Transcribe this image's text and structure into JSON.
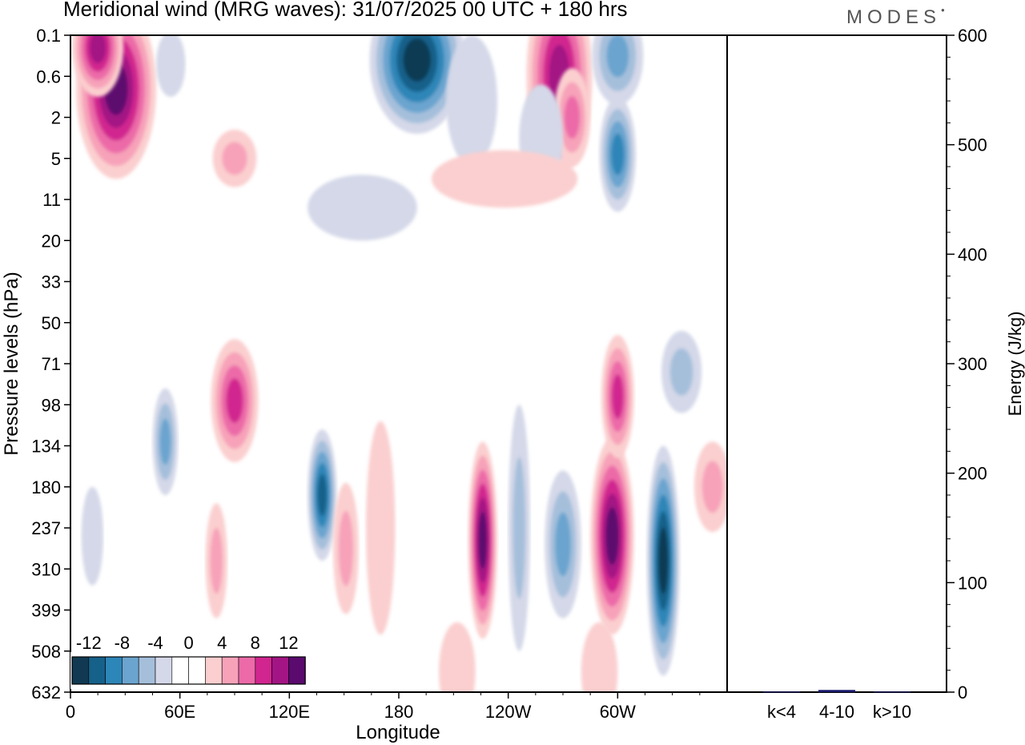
{
  "title": "Meridional wind (MRG waves):  31/07/2025  00 UTC  + 180 hrs",
  "logo": "MODES",
  "colors": {
    "neg": [
      "#113a52",
      "#15618a",
      "#2d86b8",
      "#6ba4cf",
      "#a5bfdb",
      "#d4d8e8"
    ],
    "pos": [
      "#fbcfcf",
      "#f7a2b9",
      "#ec6aa8",
      "#d1258f",
      "#a31584",
      "#5b0a6e"
    ],
    "frame": "#000000",
    "energy_bar": "#1a1a6e"
  },
  "chart_data": [
    {
      "type": "heatmap",
      "title": "Meridional wind (MRG waves):  31/07/2025  00 UTC  + 180 hrs",
      "xlabel": "Longitude",
      "ylabel": "Pressure levels (hPa)",
      "x_ticks": [
        "0",
        "60E",
        "120E",
        "180",
        "120W",
        "60W"
      ],
      "y_ticks": [
        "0.1",
        "0.6",
        "2",
        "5",
        "11",
        "20",
        "33",
        "50",
        "71",
        "98",
        "134",
        "180",
        "237",
        "310",
        "399",
        "508",
        "632"
      ],
      "colorbar": {
        "labels": [
          "-12",
          "-8",
          "-4",
          "0",
          "4",
          "8",
          "12"
        ],
        "levels": [
          -14,
          -12,
          -10,
          -8,
          -6,
          -4,
          -2,
          2,
          4,
          6,
          8,
          10,
          12,
          14
        ]
      },
      "features": [
        {
          "lon": 25,
          "lev": 1.3,
          "value": 14,
          "lon_w": 22,
          "lev_w": 2.2
        },
        {
          "lon": 15,
          "lev": 0.3,
          "value": 10,
          "lon_w": 14,
          "lev_w": 1.2
        },
        {
          "lon": 190,
          "lev": 0.6,
          "value": -13,
          "lon_w": 26,
          "lev_w": 1.8
        },
        {
          "lon": 268,
          "lev": 1.0,
          "value": 11,
          "lon_w": 18,
          "lev_w": 2.4
        },
        {
          "lon": 300,
          "lev": 0.5,
          "value": -6,
          "lon_w": 14,
          "lev_w": 1.2
        },
        {
          "lon": 300,
          "lev": 2.9,
          "value": -8,
          "lon_w": 10,
          "lev_w": 1.4
        },
        {
          "lon": 275,
          "lev": 2.0,
          "value": 6,
          "lon_w": 10,
          "lev_w": 1.2
        },
        {
          "lon": 258,
          "lev": 2.5,
          "value": -3,
          "lon_w": 12,
          "lev_w": 1.3
        },
        {
          "lon": 220,
          "lev": 1.6,
          "value": -3,
          "lon_w": 14,
          "lev_w": 1.6
        },
        {
          "lon": 55,
          "lev": 0.7,
          "value": -3,
          "lon_w": 8,
          "lev_w": 0.8
        },
        {
          "lon": 90,
          "lev": 3.0,
          "value": 4,
          "lon_w": 12,
          "lev_w": 0.7
        },
        {
          "lon": 160,
          "lev": 4.2,
          "value": -3,
          "lon_w": 30,
          "lev_w": 0.8
        },
        {
          "lon": 238,
          "lev": 3.5,
          "value": 3,
          "lon_w": 40,
          "lev_w": 0.7
        },
        {
          "lon": 90,
          "lev": 8.9,
          "value": 8,
          "lon_w": 13,
          "lev_w": 1.5
        },
        {
          "lon": 52,
          "lev": 9.9,
          "value": -7,
          "lon_w": 7,
          "lev_w": 1.3
        },
        {
          "lon": 138,
          "lev": 11.2,
          "value": -11,
          "lon_w": 8,
          "lev_w": 1.6
        },
        {
          "lon": 151,
          "lev": 12.5,
          "value": 5,
          "lon_w": 7,
          "lev_w": 1.6
        },
        {
          "lon": 170,
          "lev": 12.0,
          "value": 3,
          "lon_w": 8,
          "lev_w": 2.6
        },
        {
          "lon": 226,
          "lev": 12.3,
          "value": 12,
          "lon_w": 8,
          "lev_w": 2.4
        },
        {
          "lon": 246,
          "lev": 12.0,
          "value": -4,
          "lon_w": 6,
          "lev_w": 3.0
        },
        {
          "lon": 270,
          "lev": 12.4,
          "value": -7,
          "lon_w": 10,
          "lev_w": 1.8
        },
        {
          "lon": 297,
          "lev": 12.2,
          "value": 12,
          "lon_w": 12,
          "lev_w": 2.4
        },
        {
          "lon": 325,
          "lev": 12.8,
          "value": -13,
          "lon_w": 9,
          "lev_w": 2.8
        },
        {
          "lon": 300,
          "lev": 8.8,
          "value": 8,
          "lon_w": 9,
          "lev_w": 1.5
        },
        {
          "lon": 335,
          "lev": 8.2,
          "value": -5,
          "lon_w": 11,
          "lev_w": 1.0
        },
        {
          "lon": 352,
          "lev": 11.0,
          "value": 5,
          "lon_w": 10,
          "lev_w": 1.1
        },
        {
          "lon": 80,
          "lev": 12.8,
          "value": 5,
          "lon_w": 6,
          "lev_w": 1.4
        },
        {
          "lon": 12,
          "lev": 12.2,
          "value": -3,
          "lon_w": 6,
          "lev_w": 1.2
        },
        {
          "lon": 212,
          "lev": 15.5,
          "value": 3,
          "lon_w": 10,
          "lev_w": 1.2
        },
        {
          "lon": 290,
          "lev": 15.5,
          "value": 3,
          "lon_w": 10,
          "lev_w": 1.2
        }
      ]
    },
    {
      "type": "bar",
      "categories": [
        "k<4",
        "4-10",
        "k>10"
      ],
      "values": [
        0.5,
        2,
        0.5
      ],
      "ylabel": "Energy (J/kg)",
      "ylim": [
        0,
        600
      ],
      "y_ticks": [
        "0",
        "100",
        "200",
        "300",
        "400",
        "500",
        "600"
      ]
    }
  ]
}
